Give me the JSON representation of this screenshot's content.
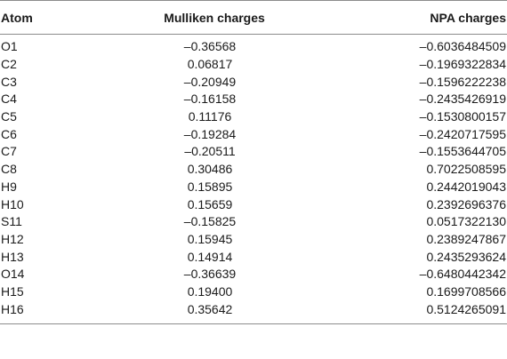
{
  "table": {
    "headers": [
      "Atom",
      "Mulliken charges",
      "NPA charges"
    ],
    "rows": [
      [
        "O1",
        "–0.36568",
        "–0.6036484509"
      ],
      [
        "C2",
        "0.06817",
        "–0.1969322834"
      ],
      [
        "C3",
        "–0.20949",
        "–0.1596222238"
      ],
      [
        "C4",
        "–0.16158",
        "–0.2435426919"
      ],
      [
        "C5",
        "0.11176",
        "–0.1530800157"
      ],
      [
        "C6",
        "–0.19284",
        "–0.2420717595"
      ],
      [
        "C7",
        "–0.20511",
        "–0.1553644705"
      ],
      [
        "C8",
        "0.30486",
        "0.7022508595"
      ],
      [
        "H9",
        "0.15895",
        "0.2442019043"
      ],
      [
        "H10",
        "0.15659",
        "0.2392696376"
      ],
      [
        "S11",
        "–0.15825",
        "0.0517322130"
      ],
      [
        "H12",
        "0.15945",
        "0.2389247867"
      ],
      [
        "H13",
        "0.14914",
        "0.2435293624"
      ],
      [
        "O14",
        "–0.36639",
        "–0.6480442342"
      ],
      [
        "H15",
        "0.19400",
        "0.1699708566"
      ],
      [
        "H16",
        "0.35642",
        "0.5124265091"
      ]
    ]
  }
}
